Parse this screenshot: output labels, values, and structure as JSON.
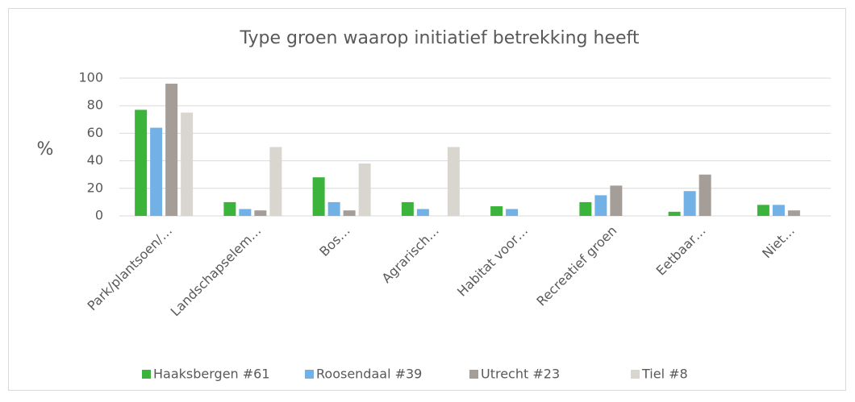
{
  "chart_data": {
    "type": "bar",
    "title": "Type groen waarop initiatief betrekking heeft",
    "y_label": "%",
    "categories": [
      "Park/plantsoen/…",
      "Landschapselem…",
      "Bos…",
      "Agrarisch…",
      "Habitat voor…",
      "Recreatief groen",
      "Eetbaar…",
      "Niet…"
    ],
    "series": [
      {
        "name": "Haaksbergen #61",
        "color": "#3cb43c",
        "values": [
          77,
          10,
          28,
          10,
          7,
          10,
          3,
          8
        ]
      },
      {
        "name": "Roosendaal #39",
        "color": "#72b1e6",
        "values": [
          64,
          5,
          10,
          5,
          5,
          15,
          18,
          8
        ]
      },
      {
        "name": "Utrecht #23",
        "color": "#a59e98",
        "values": [
          96,
          4,
          4,
          null,
          null,
          22,
          30,
          4
        ]
      },
      {
        "name": "Tiel #8",
        "color": "#d8d6cf",
        "values": [
          75,
          50,
          38,
          50,
          null,
          null,
          null,
          null
        ]
      }
    ],
    "ylim": [
      0,
      100
    ],
    "yticks": [
      0,
      20,
      40,
      60,
      80,
      100
    ],
    "grid": true,
    "legend": "bottom"
  }
}
